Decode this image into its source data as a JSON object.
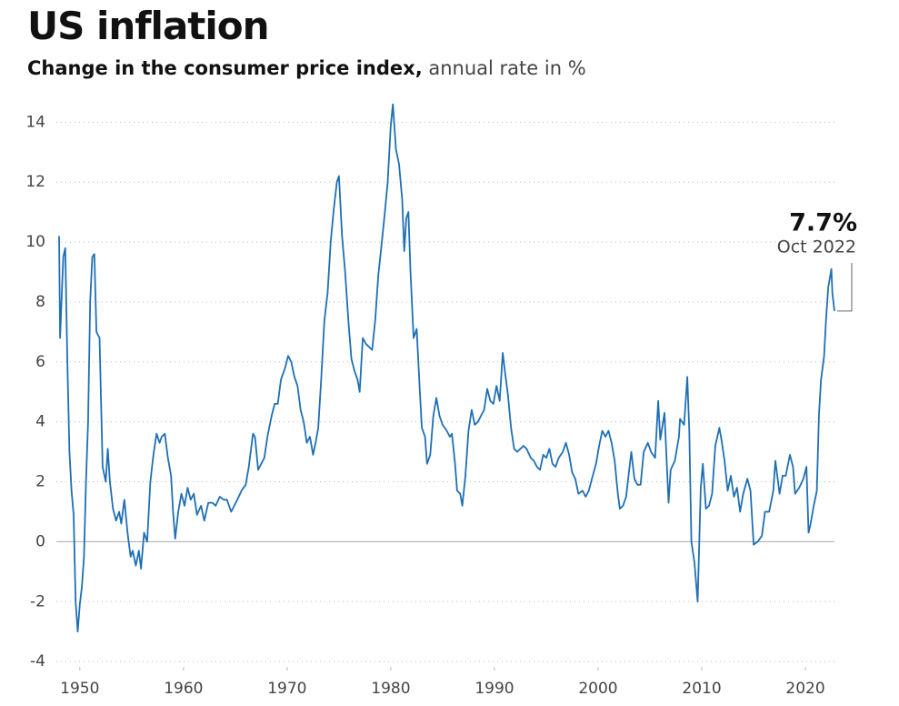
{
  "chart_data": {
    "type": "line",
    "title": "US inflation",
    "subtitle": "Change in the consumer price index,",
    "subtitle_unit": "annual rate in %",
    "color": "#1f6fb4",
    "grid": true,
    "xlim": [
      1948,
      2022.8
    ],
    "xticks": [
      1950,
      1960,
      1970,
      1980,
      1990,
      2000,
      2010,
      2020
    ],
    "ylim": [
      -4.3,
      14.8
    ],
    "yticks": [
      -4,
      -2,
      0,
      2,
      4,
      6,
      8,
      10,
      12,
      14
    ],
    "annotation": {
      "text": "7.7%",
      "value": 7.7,
      "date": "Oct 2022"
    },
    "x": [
      1948.0,
      1948.1,
      1948.4,
      1948.6,
      1948.8,
      1949.0,
      1949.2,
      1949.4,
      1949.6,
      1949.8,
      1950.0,
      1950.2,
      1950.4,
      1950.6,
      1950.8,
      1951.0,
      1951.2,
      1951.4,
      1951.6,
      1951.9,
      1952.2,
      1952.5,
      1952.7,
      1952.9,
      1953.2,
      1953.5,
      1953.8,
      1954.0,
      1954.3,
      1954.6,
      1954.9,
      1955.1,
      1955.4,
      1955.7,
      1955.9,
      1956.2,
      1956.5,
      1956.8,
      1957.1,
      1957.4,
      1957.7,
      1957.9,
      1958.2,
      1958.5,
      1958.8,
      1959.0,
      1959.2,
      1959.5,
      1959.8,
      1960.1,
      1960.4,
      1960.7,
      1961.0,
      1961.3,
      1961.7,
      1962.0,
      1962.4,
      1962.8,
      1963.1,
      1963.5,
      1963.9,
      1964.2,
      1964.6,
      1964.9,
      1965.2,
      1965.6,
      1966.0,
      1966.3,
      1966.7,
      1966.9,
      1967.2,
      1967.5,
      1967.8,
      1968.1,
      1968.5,
      1968.8,
      1969.1,
      1969.4,
      1969.8,
      1970.1,
      1970.4,
      1970.7,
      1971.0,
      1971.3,
      1971.6,
      1971.9,
      1972.2,
      1972.5,
      1972.8,
      1973.0,
      1973.3,
      1973.6,
      1973.9,
      1974.2,
      1974.5,
      1974.8,
      1975.0,
      1975.3,
      1975.6,
      1975.9,
      1976.2,
      1976.5,
      1976.8,
      1977.0,
      1977.3,
      1977.6,
      1977.9,
      1978.2,
      1978.5,
      1978.8,
      1979.1,
      1979.4,
      1979.7,
      1980.0,
      1980.2,
      1980.5,
      1980.8,
      1981.1,
      1981.3,
      1981.5,
      1981.7,
      1981.9,
      1982.2,
      1982.5,
      1982.8,
      1983.0,
      1983.3,
      1983.5,
      1983.8,
      1984.1,
      1984.4,
      1984.7,
      1985.0,
      1985.4,
      1985.7,
      1985.9,
      1986.2,
      1986.4,
      1986.7,
      1986.9,
      1987.2,
      1987.5,
      1987.8,
      1988.1,
      1988.4,
      1988.7,
      1989.0,
      1989.3,
      1989.6,
      1989.9,
      1990.2,
      1990.5,
      1990.8,
      1991.0,
      1991.3,
      1991.6,
      1991.9,
      1992.2,
      1992.5,
      1992.8,
      1993.1,
      1993.5,
      1993.8,
      1994.1,
      1994.4,
      1994.7,
      1995.0,
      1995.3,
      1995.6,
      1995.9,
      1996.2,
      1996.6,
      1996.9,
      1997.2,
      1997.5,
      1997.8,
      1998.1,
      1998.5,
      1998.8,
      1999.1,
      1999.4,
      1999.8,
      2000.1,
      2000.4,
      2000.7,
      2001.0,
      2001.3,
      2001.6,
      2001.9,
      2002.1,
      2002.4,
      2002.7,
      2003.0,
      2003.2,
      2003.5,
      2003.8,
      2004.1,
      2004.4,
      2004.8,
      2005.1,
      2005.5,
      2005.8,
      2006.0,
      2006.4,
      2006.8,
      2007.0,
      2007.4,
      2007.8,
      2007.9,
      2008.3,
      2008.6,
      2008.8,
      2009.0,
      2009.3,
      2009.6,
      2009.9,
      2010.1,
      2010.4,
      2010.7,
      2011.0,
      2011.3,
      2011.7,
      2011.9,
      2012.2,
      2012.5,
      2012.8,
      2013.1,
      2013.4,
      2013.7,
      2014.0,
      2014.4,
      2014.7,
      2015.0,
      2015.4,
      2015.8,
      2016.1,
      2016.5,
      2016.9,
      2017.1,
      2017.5,
      2017.8,
      2018.1,
      2018.5,
      2018.8,
      2019.0,
      2019.4,
      2019.8,
      2020.1,
      2020.3,
      2020.5,
      2020.8,
      2021.1,
      2021.3,
      2021.5,
      2021.8,
      2022.0,
      2022.2,
      2022.5,
      2022.6,
      2022.8
    ],
    "values": [
      10.2,
      6.8,
      9.5,
      9.8,
      6.0,
      3.0,
      1.7,
      0.9,
      -2.0,
      -3.0,
      -2.1,
      -1.5,
      -0.5,
      2.0,
      4.0,
      8.0,
      9.5,
      9.6,
      7.0,
      6.8,
      2.5,
      2.0,
      3.1,
      2.0,
      1.1,
      0.7,
      1.0,
      0.6,
      1.4,
      0.3,
      -0.5,
      -0.3,
      -0.8,
      -0.3,
      -0.9,
      0.3,
      0.0,
      2.0,
      2.9,
      3.6,
      3.3,
      3.5,
      3.6,
      2.8,
      2.2,
      1.0,
      0.1,
      1.0,
      1.6,
      1.2,
      1.8,
      1.4,
      1.6,
      0.9,
      1.2,
      0.7,
      1.3,
      1.3,
      1.2,
      1.5,
      1.4,
      1.4,
      1.0,
      1.2,
      1.4,
      1.7,
      1.9,
      2.5,
      3.6,
      3.5,
      2.4,
      2.6,
      2.8,
      3.5,
      4.2,
      4.6,
      4.6,
      5.4,
      5.8,
      6.2,
      6.0,
      5.5,
      5.2,
      4.4,
      4.0,
      3.3,
      3.5,
      2.9,
      3.4,
      3.8,
      5.5,
      7.4,
      8.3,
      10.0,
      11.1,
      12.0,
      12.2,
      10.2,
      9.0,
      7.4,
      6.1,
      5.7,
      5.4,
      5.0,
      6.8,
      6.6,
      6.5,
      6.4,
      7.4,
      8.9,
      9.9,
      10.9,
      12.0,
      13.9,
      14.6,
      13.1,
      12.6,
      11.4,
      9.7,
      10.8,
      11.0,
      9.0,
      6.8,
      7.1,
      5.0,
      3.8,
      3.5,
      2.6,
      2.9,
      4.2,
      4.8,
      4.2,
      3.9,
      3.7,
      3.5,
      3.6,
      2.6,
      1.7,
      1.6,
      1.2,
      2.2,
      3.7,
      4.4,
      3.9,
      4.0,
      4.2,
      4.4,
      5.1,
      4.7,
      4.6,
      5.2,
      4.7,
      6.3,
      5.7,
      4.9,
      3.8,
      3.1,
      3.0,
      3.1,
      3.2,
      3.1,
      2.8,
      2.7,
      2.5,
      2.4,
      2.9,
      2.8,
      3.1,
      2.6,
      2.5,
      2.8,
      3.0,
      3.3,
      2.9,
      2.3,
      2.1,
      1.6,
      1.7,
      1.5,
      1.7,
      2.1,
      2.6,
      3.2,
      3.7,
      3.5,
      3.7,
      3.3,
      2.7,
      1.6,
      1.1,
      1.2,
      1.5,
      2.4,
      3.0,
      2.1,
      1.9,
      1.9,
      3.0,
      3.3,
      3.0,
      2.8,
      4.7,
      3.4,
      4.3,
      1.3,
      2.4,
      2.7,
      3.5,
      4.1,
      3.9,
      5.5,
      3.7,
      0.0,
      -0.7,
      -2.0,
      1.8,
      2.6,
      1.1,
      1.2,
      1.6,
      3.2,
      3.8,
      3.4,
      2.7,
      1.7,
      2.2,
      1.5,
      1.8,
      1.0,
      1.6,
      2.1,
      1.7,
      -0.1,
      0.0,
      0.2,
      1.0,
      1.0,
      1.7,
      2.7,
      1.6,
      2.2,
      2.2,
      2.9,
      2.5,
      1.6,
      1.8,
      2.1,
      2.5,
      0.3,
      0.6,
      1.2,
      1.7,
      4.2,
      5.4,
      6.2,
      7.5,
      8.5,
      9.1,
      8.3,
      7.7
    ]
  }
}
